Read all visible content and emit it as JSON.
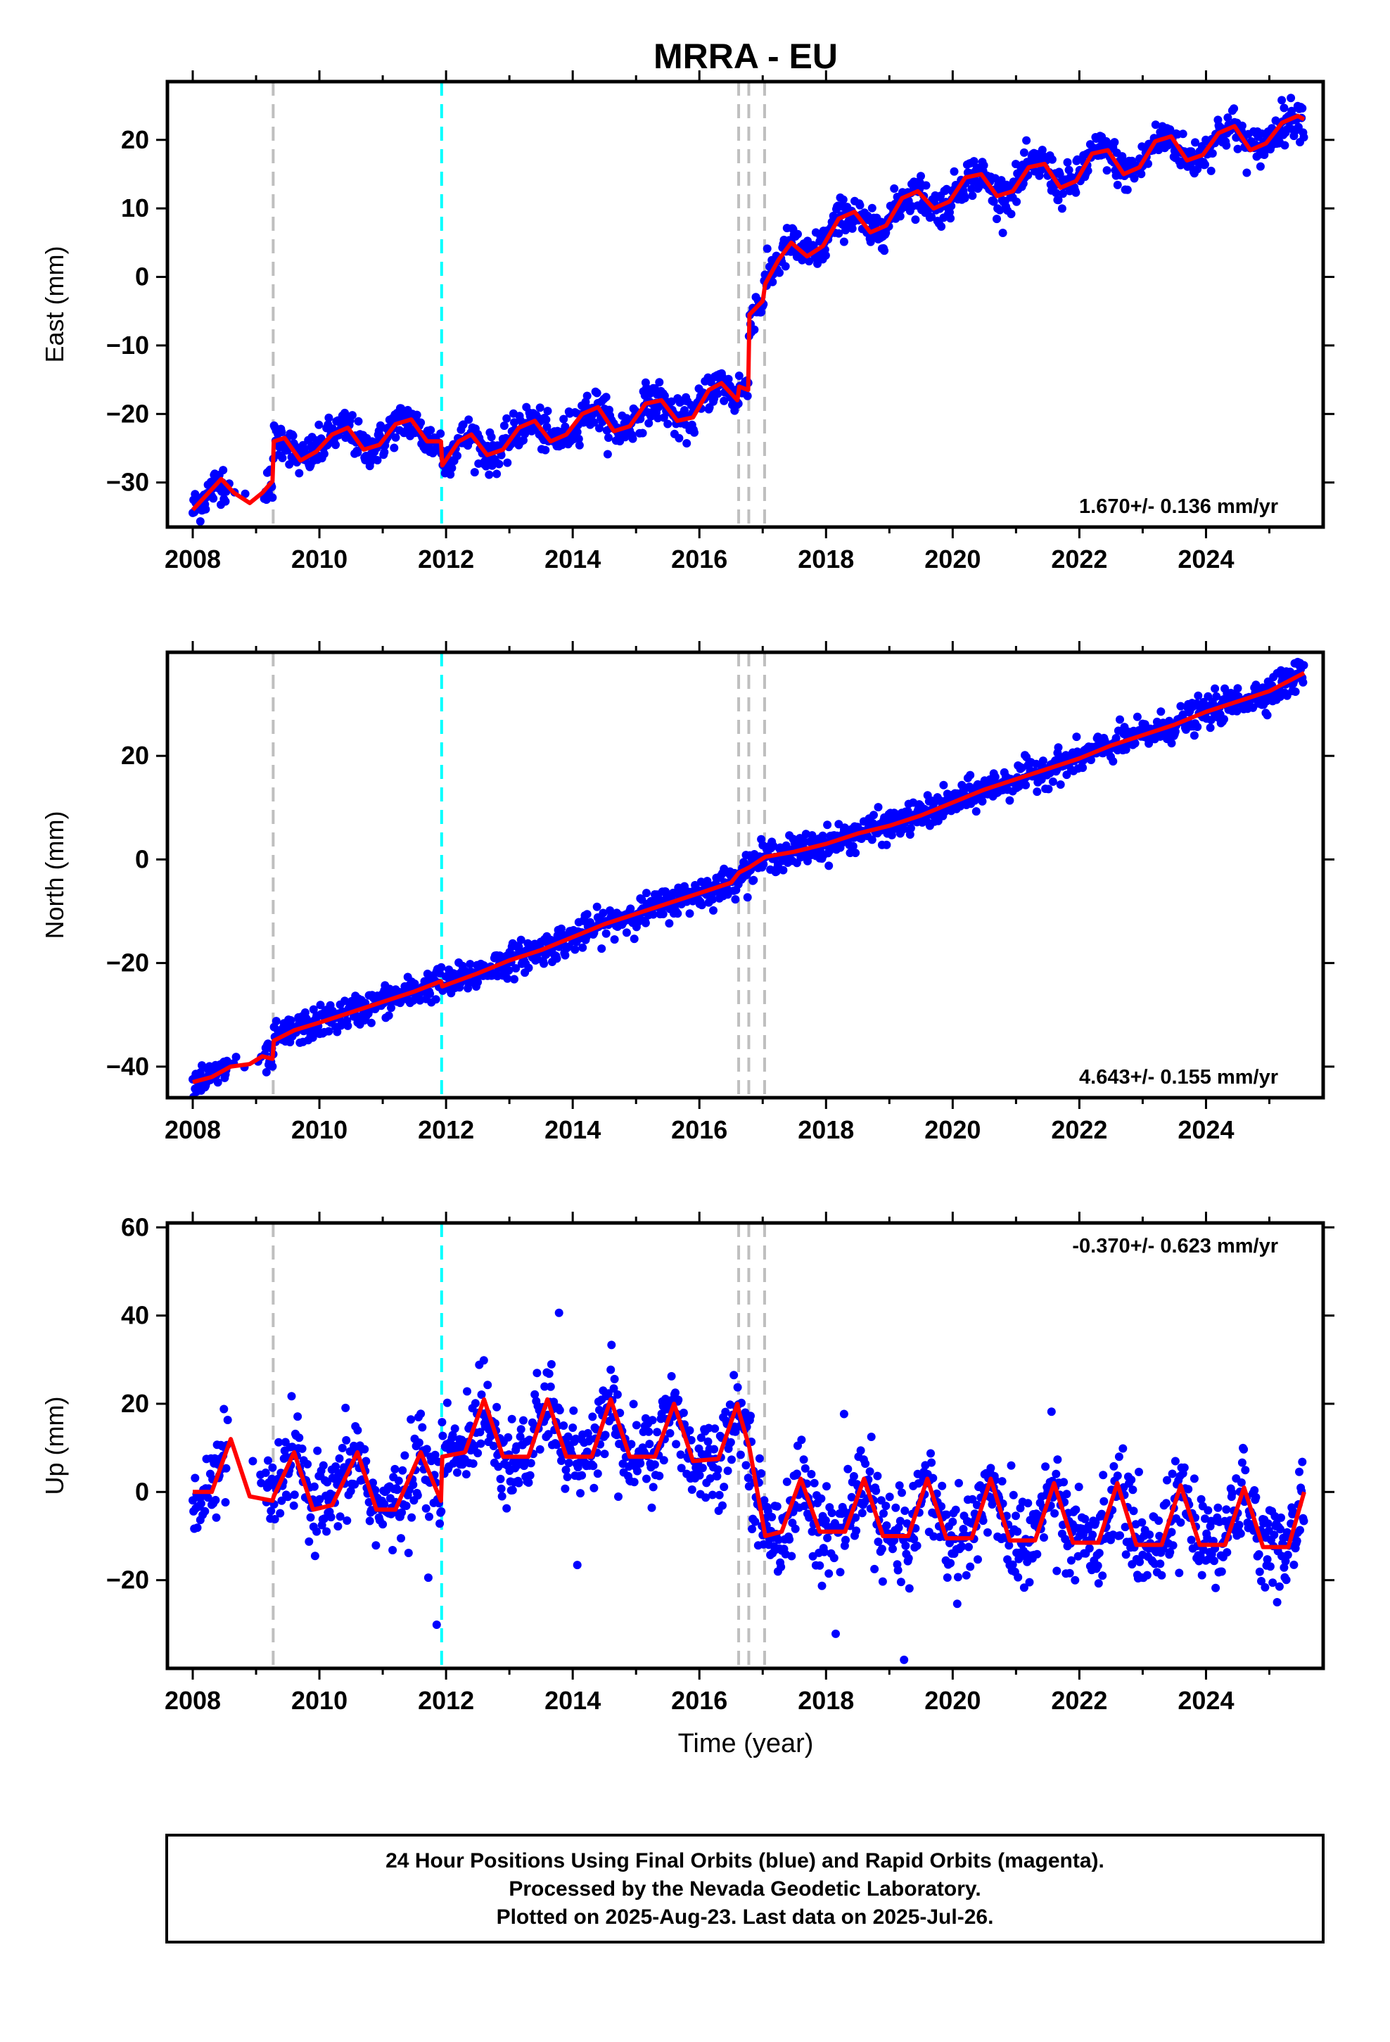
{
  "title": "MRRA - EU",
  "xlabel": "Time (year)",
  "footer": {
    "line1": "24 Hour Positions Using Final Orbits (blue) and Rapid Orbits (magenta).",
    "line2": "Processed by the Nevada Geodetic Laboratory.",
    "line3": "Plotted on 2025-Aug-23. Last data on 2025-Jul-26."
  },
  "colors": {
    "points": "#0000ff",
    "model": "#ff0000",
    "event_gray": "#bfbfbf",
    "event_cyan": "#00ffff"
  },
  "chart_data": [
    {
      "type": "scatter",
      "component": "East",
      "ylabel": "East (mm)",
      "xlim": [
        2007.6,
        2025.85
      ],
      "ylim": [
        -36.5,
        28.5
      ],
      "yticks": [
        -30,
        -20,
        -10,
        0,
        10,
        20
      ],
      "xticks": [
        2008,
        2010,
        2012,
        2014,
        2016,
        2018,
        2020,
        2022,
        2024
      ],
      "rate": "1.670+/- 0.136 mm/yr",
      "rate_position": "bottom-right",
      "events_gray": [
        2009.27,
        2016.62,
        2016.78,
        2017.03
      ],
      "events_cyan": [
        2011.93
      ],
      "model_line": {
        "name": "model",
        "x": [
          2008.0,
          2008.2,
          2008.45,
          2008.65,
          2008.9,
          2009.1,
          2009.26,
          2009.28,
          2009.45,
          2009.7,
          2009.95,
          2010.2,
          2010.45,
          2010.7,
          2010.95,
          2011.2,
          2011.45,
          2011.7,
          2011.92,
          2011.94,
          2012.2,
          2012.4,
          2012.65,
          2012.9,
          2013.15,
          2013.4,
          2013.65,
          2013.9,
          2014.15,
          2014.4,
          2014.65,
          2014.9,
          2015.15,
          2015.4,
          2015.65,
          2015.9,
          2016.15,
          2016.35,
          2016.6,
          2016.63,
          2016.77,
          2016.79,
          2017.0,
          2017.04,
          2017.25,
          2017.45,
          2017.7,
          2017.95,
          2018.2,
          2018.45,
          2018.7,
          2018.95,
          2019.2,
          2019.45,
          2019.7,
          2019.95,
          2020.2,
          2020.45,
          2020.7,
          2020.95,
          2021.2,
          2021.45,
          2021.7,
          2021.95,
          2022.2,
          2022.45,
          2022.7,
          2022.95,
          2023.2,
          2023.45,
          2023.7,
          2023.95,
          2024.2,
          2024.45,
          2024.7,
          2024.95,
          2025.2,
          2025.45,
          2025.55
        ],
        "y": [
          -34.0,
          -32.0,
          -29.5,
          -31.5,
          -33.0,
          -31.5,
          -29.8,
          -24.0,
          -23.5,
          -26.8,
          -25.5,
          -23.0,
          -22.0,
          -25.2,
          -24.5,
          -21.5,
          -20.8,
          -24.0,
          -24.0,
          -27.5,
          -24.0,
          -23.0,
          -26.0,
          -25.2,
          -22.0,
          -21.0,
          -24.0,
          -23.0,
          -20.0,
          -19.0,
          -22.5,
          -21.8,
          -18.5,
          -18.0,
          -21.0,
          -20.5,
          -16.5,
          -15.5,
          -18.0,
          -16.0,
          -16.5,
          -5.5,
          -3.5,
          -1.0,
          2.5,
          5.0,
          3.0,
          4.5,
          8.5,
          9.5,
          6.5,
          7.5,
          11.5,
          12.5,
          10.0,
          11.0,
          14.5,
          15.0,
          11.8,
          12.5,
          16.0,
          16.5,
          13.0,
          14.0,
          18.0,
          18.5,
          15.0,
          16.0,
          19.8,
          20.5,
          17.0,
          17.8,
          21.0,
          22.0,
          18.5,
          19.5,
          22.5,
          23.5,
          23.0
        ]
      }
    },
    {
      "type": "scatter",
      "component": "North",
      "ylabel": "North (mm)",
      "xlim": [
        2007.6,
        2025.85
      ],
      "ylim": [
        -46,
        40
      ],
      "yticks": [
        -40,
        -20,
        0,
        20
      ],
      "xticks": [
        2008,
        2010,
        2012,
        2014,
        2016,
        2018,
        2020,
        2022,
        2024
      ],
      "rate": "4.643+/- 0.155 mm/yr",
      "rate_position": "bottom-right",
      "events_gray": [
        2009.27,
        2016.62,
        2016.78,
        2017.03
      ],
      "events_cyan": [
        2011.93
      ],
      "model_line": {
        "name": "model",
        "x": [
          2008.0,
          2008.3,
          2008.6,
          2008.9,
          2009.1,
          2009.26,
          2009.28,
          2009.6,
          2010.0,
          2010.5,
          2011.0,
          2011.5,
          2011.92,
          2011.94,
          2012.5,
          2013.0,
          2013.5,
          2014.0,
          2014.5,
          2015.0,
          2015.5,
          2016.0,
          2016.5,
          2016.63,
          2016.79,
          2017.04,
          2017.5,
          2018.0,
          2018.5,
          2019.0,
          2019.5,
          2020.0,
          2020.5,
          2021.0,
          2021.5,
          2022.0,
          2022.5,
          2023.0,
          2023.5,
          2024.0,
          2024.5,
          2025.0,
          2025.55
        ],
        "y": [
          -43.0,
          -42.0,
          -40.0,
          -39.5,
          -38.0,
          -38.5,
          -35.0,
          -33.0,
          -31.5,
          -29.5,
          -27.5,
          -25.5,
          -23.5,
          -24.5,
          -22.0,
          -19.5,
          -17.5,
          -15.0,
          -12.5,
          -10.5,
          -8.5,
          -6.5,
          -4.5,
          -2.5,
          -1.5,
          0.5,
          1.5,
          3.0,
          5.0,
          6.5,
          8.5,
          11.0,
          13.5,
          15.5,
          17.5,
          19.5,
          22.0,
          24.0,
          26.0,
          28.5,
          30.5,
          32.5,
          36.0
        ]
      }
    },
    {
      "type": "scatter",
      "component": "Up",
      "ylabel": "Up (mm)",
      "xlabel": "Time (year)",
      "xlim": [
        2007.6,
        2025.85
      ],
      "ylim": [
        -40,
        61
      ],
      "yticks": [
        -20,
        0,
        20,
        40,
        60
      ],
      "xticks": [
        2008,
        2010,
        2012,
        2014,
        2016,
        2018,
        2020,
        2022,
        2024
      ],
      "rate": "-0.370+/- 0.623 mm/yr",
      "rate_position": "top-right",
      "events_gray": [
        2009.27,
        2016.62,
        2016.78,
        2017.03
      ],
      "events_cyan": [
        2011.93
      ],
      "model_line": {
        "name": "model",
        "x": [
          2008.0,
          2008.3,
          2008.6,
          2008.9,
          2009.26,
          2009.28,
          2009.6,
          2009.9,
          2010.2,
          2010.6,
          2010.9,
          2011.2,
          2011.6,
          2011.92,
          2011.94,
          2012.3,
          2012.6,
          2012.9,
          2013.3,
          2013.6,
          2013.9,
          2014.3,
          2014.6,
          2014.9,
          2015.3,
          2015.6,
          2015.9,
          2016.3,
          2016.6,
          2016.63,
          2016.79,
          2017.04,
          2017.3,
          2017.6,
          2017.9,
          2018.3,
          2018.6,
          2018.9,
          2019.3,
          2019.6,
          2019.9,
          2020.3,
          2020.6,
          2020.9,
          2021.3,
          2021.6,
          2021.9,
          2022.3,
          2022.6,
          2022.9,
          2023.3,
          2023.6,
          2023.9,
          2024.3,
          2024.6,
          2024.9,
          2025.3,
          2025.55
        ],
        "y": [
          0.0,
          0.0,
          12.0,
          -1.0,
          -2.0,
          -1.0,
          9.0,
          -4.0,
          -3.0,
          9.0,
          -4.0,
          -4.0,
          9.0,
          -2.0,
          8.0,
          9.0,
          21.0,
          8.0,
          8.0,
          21.0,
          8.0,
          8.0,
          21.0,
          8.0,
          8.0,
          20.0,
          7.0,
          7.5,
          20.0,
          18.0,
          10.0,
          -10.0,
          -9.0,
          3.0,
          -9.0,
          -9.0,
          3.0,
          -10.0,
          -10.0,
          3.0,
          -10.5,
          -10.5,
          3.0,
          -11.0,
          -11.0,
          2.0,
          -11.5,
          -11.5,
          2.0,
          -12.0,
          -12.0,
          1.5,
          -12.0,
          -12.0,
          1.0,
          -12.5,
          -12.5,
          0.0
        ]
      }
    }
  ]
}
